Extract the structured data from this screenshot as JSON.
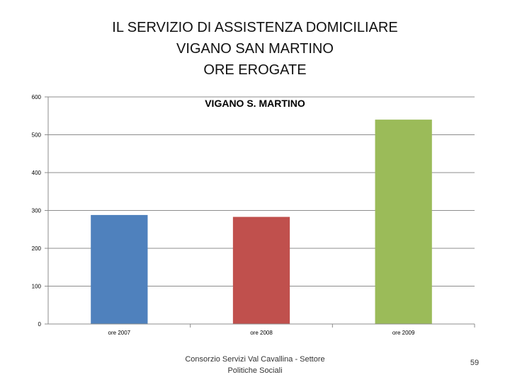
{
  "slide": {
    "title_lines": [
      "IL SERVIZIO DI ASSISTENZA DOMICILIARE",
      "VIGANO SAN MARTINO",
      "ORE EROGATE"
    ],
    "footer_lines": [
      "Consorzio Servizi Val Cavallina - Settore",
      "Politiche Sociali"
    ],
    "page_number": "59"
  },
  "chart_data": {
    "type": "bar",
    "title": "VIGANO S. MARTINO",
    "categories": [
      "ore 2007",
      "ore 2008",
      "ore 2009"
    ],
    "values": [
      288,
      283,
      540
    ],
    "colors": [
      "#4f81bd",
      "#c0504d",
      "#9bbb59"
    ],
    "ylim": [
      0,
      600
    ],
    "yticks": [
      0,
      100,
      200,
      300,
      400,
      500,
      600
    ],
    "grid": true,
    "xlabel": "",
    "ylabel": ""
  }
}
